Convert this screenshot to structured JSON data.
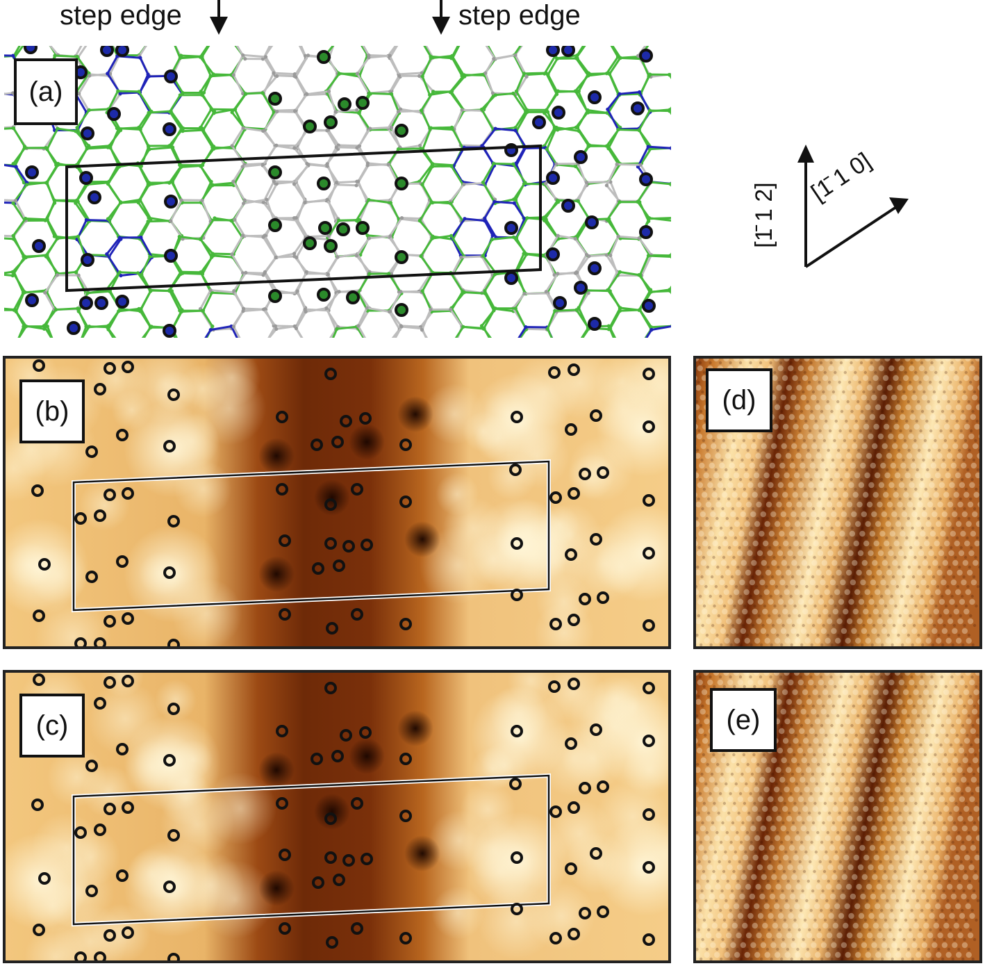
{
  "header": {
    "step_edge_left": "step edge",
    "step_edge_right": "step edge"
  },
  "panels": {
    "a": {
      "label": "(a)"
    },
    "b": {
      "label": "(b)"
    },
    "c": {
      "label": "(c)"
    },
    "d": {
      "label": "(d)"
    },
    "e": {
      "label": "(e)"
    }
  },
  "axes": {
    "vertical_label": "[1̄ 1 2]",
    "diagonal_label": "[1̄ 1 0]"
  },
  "colors": {
    "bond_green": "#46b83a",
    "bond_gray": "#bdbdbd",
    "bond_blue": "#1f23b8",
    "stm_dark": "#5a1f05",
    "stm_mid": "#c07a2a",
    "stm_light": "#fff6d8"
  }
}
